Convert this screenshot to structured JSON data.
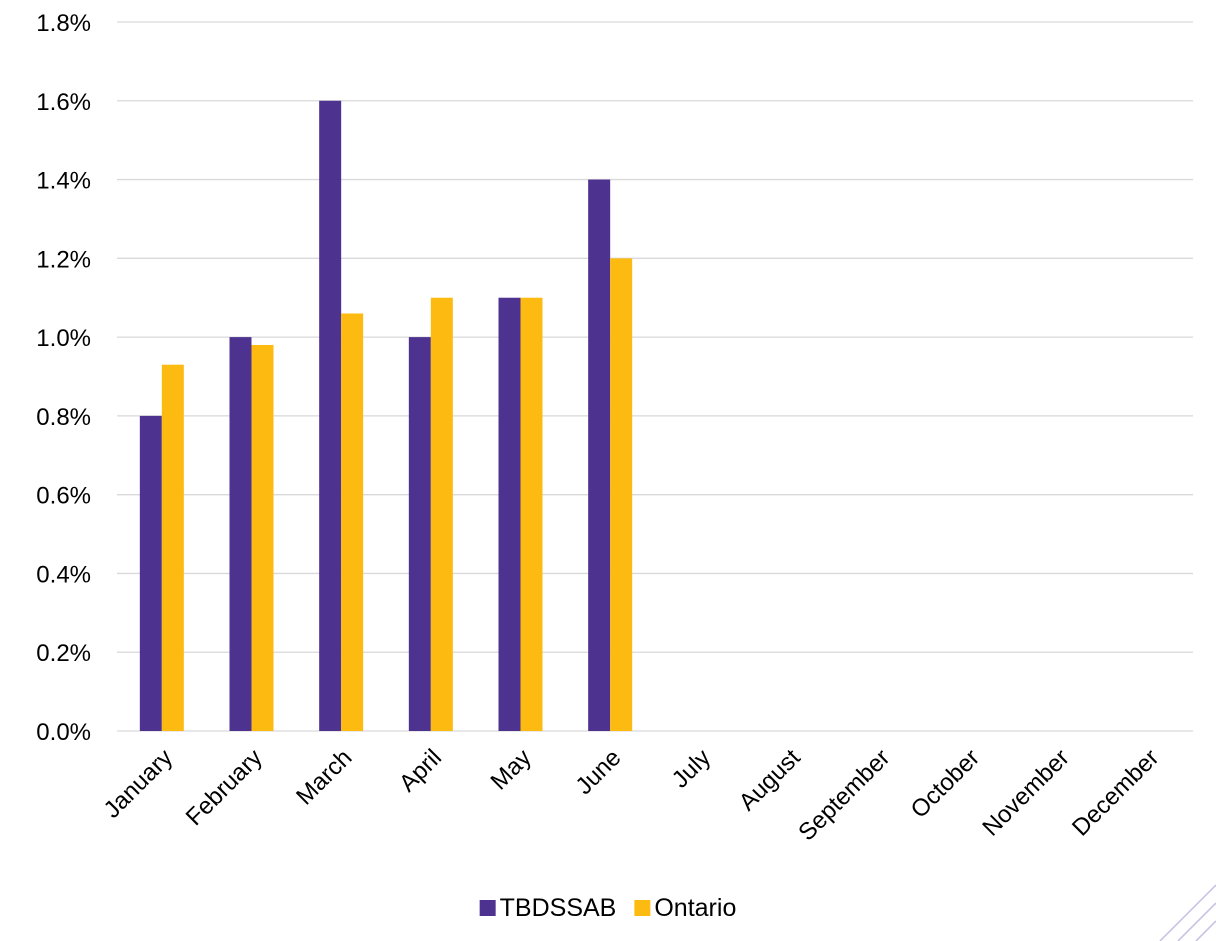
{
  "chart_data": {
    "type": "bar",
    "title": "",
    "xlabel": "",
    "ylabel": "",
    "categories": [
      "January",
      "February",
      "March",
      "April",
      "May",
      "June",
      "July",
      "August",
      "September",
      "October",
      "November",
      "December"
    ],
    "series": [
      {
        "name": "TBDSSAB",
        "color": "#4d3290",
        "values": [
          0.8,
          1.0,
          1.6,
          1.0,
          1.1,
          1.4,
          null,
          null,
          null,
          null,
          null,
          null
        ]
      },
      {
        "name": "Ontario",
        "color": "#fdbb12",
        "values": [
          0.93,
          0.98,
          1.06,
          1.1,
          1.1,
          1.2,
          null,
          null,
          null,
          null,
          null,
          null
        ]
      }
    ],
    "ylim": [
      0,
      1.8
    ],
    "y_ticks": [
      "0.0%",
      "0.2%",
      "0.4%",
      "0.6%",
      "0.8%",
      "1.0%",
      "1.2%",
      "1.4%",
      "1.6%",
      "1.8%"
    ],
    "y_unit": "%",
    "grid": true,
    "legend": {
      "position": "bottom",
      "entries": [
        "TBDSSAB",
        "Ontario"
      ]
    }
  }
}
